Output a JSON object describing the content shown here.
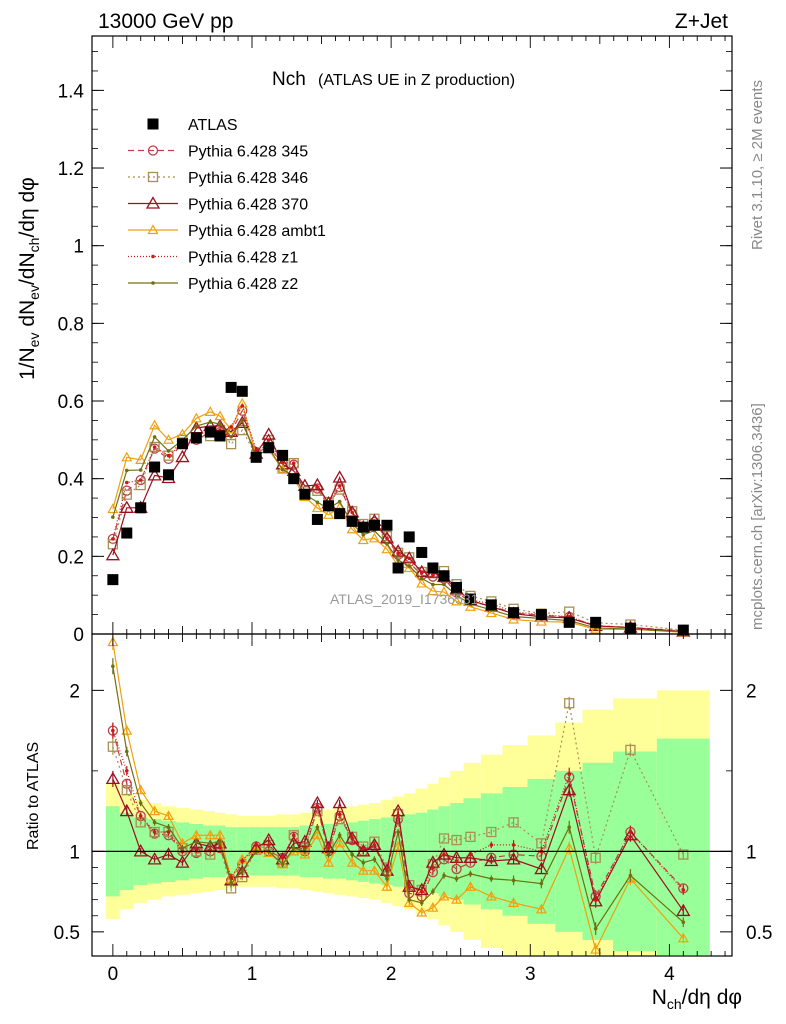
{
  "header": {
    "left": "13000 GeV pp",
    "right": "Z+Jet"
  },
  "side_labels": {
    "rivet": "Rivet 3.1.10, ≥ 2M events",
    "mcplots": "mcplots.cern.ch [arXiv:1306.3436]"
  },
  "plot": {
    "title_main": "Nch",
    "title_sub": "(ATLAS UE in Z production)",
    "watermark": "ATLAS_2019_I1736531",
    "ylabel_parts": [
      "1/N",
      "ev",
      " dN",
      "ev",
      "/dN",
      "ch",
      "/dη dφ"
    ],
    "ratio_ylabel": "Ratio to ATLAS",
    "xlabel_parts": [
      "N",
      "ch",
      "/dη dφ"
    ]
  },
  "colors": {
    "data": "#000000",
    "p345": "#c0404a",
    "p346": "#a89050",
    "p370": "#9b1020",
    "ambt1": "#f0a010",
    "z1": "#cc1a1a",
    "z2": "#707010",
    "band_outer": "#ffff99",
    "band_inner": "#99ff99"
  },
  "chart_data": {
    "type": "line",
    "x": [
      0.0,
      0.1,
      0.2,
      0.3,
      0.4,
      0.5,
      0.6,
      0.7,
      0.77,
      0.85,
      0.93,
      1.03,
      1.12,
      1.22,
      1.3,
      1.38,
      1.47,
      1.55,
      1.63,
      1.72,
      1.8,
      1.88,
      1.97,
      2.05,
      2.13,
      2.22,
      2.3,
      2.38,
      2.47,
      2.57,
      2.72,
      2.88,
      3.08,
      3.28,
      3.47,
      3.72,
      4.1
    ],
    "xlim": [
      -0.15,
      4.45
    ],
    "main_ylim": [
      0,
      1.54
    ],
    "main_yticks": [
      0,
      0.2,
      0.4,
      0.6,
      0.8,
      1,
      1.2,
      1.4
    ],
    "main_ytick_labels": [
      "0",
      "0.2",
      "0.4",
      "0.6",
      "0.8",
      "1",
      "1.2",
      "1.4"
    ],
    "ratio_ylim": [
      0.35,
      2.35
    ],
    "ratio_yticks": [
      0.5,
      1,
      2
    ],
    "ratio_ytick_labels": [
      "0.5",
      "1",
      "2"
    ],
    "xticks": [
      0,
      1,
      2,
      3,
      4
    ],
    "xtick_labels": [
      "0",
      "1",
      "2",
      "3",
      "4"
    ],
    "data_values": [
      0.14,
      0.26,
      0.325,
      0.43,
      0.41,
      0.49,
      0.505,
      0.52,
      0.51,
      0.635,
      0.625,
      0.455,
      0.48,
      0.46,
      0.4,
      0.36,
      0.295,
      0.33,
      0.31,
      0.29,
      0.275,
      0.28,
      0.28,
      0.17,
      0.25,
      0.21,
      0.17,
      0.15,
      0.12,
      0.09,
      0.075,
      0.055,
      0.05,
      0.03,
      0.03,
      0.015,
      0.01
    ],
    "band_inner": [
      0.28,
      0.24,
      0.21,
      0.2,
      0.19,
      0.18,
      0.17,
      0.16,
      0.16,
      0.15,
      0.15,
      0.15,
      0.15,
      0.15,
      0.15,
      0.16,
      0.16,
      0.17,
      0.17,
      0.18,
      0.19,
      0.2,
      0.21,
      0.22,
      0.23,
      0.24,
      0.26,
      0.28,
      0.3,
      0.33,
      0.36,
      0.4,
      0.45,
      0.5,
      0.55,
      0.62,
      0.7
    ],
    "band_outer": [
      0.42,
      0.36,
      0.32,
      0.3,
      0.28,
      0.27,
      0.26,
      0.25,
      0.24,
      0.23,
      0.22,
      0.22,
      0.22,
      0.23,
      0.23,
      0.24,
      0.25,
      0.26,
      0.27,
      0.28,
      0.29,
      0.3,
      0.32,
      0.34,
      0.36,
      0.39,
      0.42,
      0.46,
      0.5,
      0.55,
      0.6,
      0.66,
      0.72,
      0.8,
      0.88,
      0.95,
      1.0
    ],
    "legend_position": "top-left",
    "series": [
      {
        "name": "ATLAS",
        "key": "data",
        "style": "data",
        "marker": "square",
        "dash": ""
      },
      {
        "name": "Pythia 6.428 345",
        "key": "p345",
        "marker": "circle",
        "dash": "6,4",
        "ratio": [
          1.75,
          1.42,
          1.22,
          1.11,
          1.1,
          1.0,
          0.99,
          1.0,
          1.02,
          0.82,
          0.92,
          1.03,
          1.0,
          0.96,
          1.09,
          1.0,
          1.27,
          1.0,
          1.22,
          1.07,
          1.0,
          1.03,
          0.87,
          1.2,
          0.74,
          0.72,
          0.87,
          0.95,
          0.89,
          0.93,
          0.96,
          0.98,
          0.97,
          1.46,
          0.72,
          1.12,
          0.77
        ],
        "err": [
          0.05,
          0.03,
          0.02,
          0.02,
          0.02,
          0.02,
          0.02,
          0.02,
          0.02,
          0.02,
          0.02,
          0.02,
          0.02,
          0.02,
          0.02,
          0.02,
          0.02,
          0.02,
          0.02,
          0.02,
          0.02,
          0.02,
          0.02,
          0.02,
          0.02,
          0.02,
          0.02,
          0.02,
          0.02,
          0.02,
          0.02,
          0.03,
          0.03,
          0.04,
          0.04,
          0.04,
          0.03
        ]
      },
      {
        "name": "Pythia 6.428 346",
        "key": "p346",
        "marker": "square-open",
        "dash": "2,3",
        "ratio": [
          1.65,
          1.38,
          1.18,
          1.12,
          1.12,
          1.02,
          1.0,
          0.98,
          1.03,
          0.77,
          0.84,
          1.01,
          1.04,
          0.93,
          1.1,
          1.02,
          1.25,
          1.03,
          1.2,
          1.09,
          1.03,
          1.06,
          0.9,
          1.23,
          0.79,
          0.76,
          0.92,
          1.08,
          1.07,
          1.09,
          1.12,
          1.18,
          1.05,
          1.92,
          0.96,
          1.63,
          0.98
        ],
        "err": [
          0.05,
          0.03,
          0.02,
          0.02,
          0.02,
          0.02,
          0.02,
          0.02,
          0.02,
          0.02,
          0.02,
          0.02,
          0.02,
          0.02,
          0.02,
          0.02,
          0.02,
          0.02,
          0.02,
          0.02,
          0.02,
          0.02,
          0.02,
          0.02,
          0.02,
          0.02,
          0.02,
          0.02,
          0.02,
          0.02,
          0.02,
          0.03,
          0.03,
          0.04,
          0.04,
          0.04,
          0.03
        ]
      },
      {
        "name": "Pythia 6.428 370",
        "key": "p370",
        "marker": "triangle-open",
        "dash": "",
        "ratio": [
          1.45,
          1.25,
          1.0,
          0.95,
          0.98,
          0.93,
          1.05,
          1.03,
          1.05,
          0.82,
          0.87,
          1.02,
          1.07,
          0.95,
          1.05,
          1.06,
          1.3,
          1.02,
          1.3,
          1.08,
          1.0,
          1.04,
          0.88,
          1.25,
          0.78,
          0.76,
          0.93,
          0.98,
          0.96,
          0.96,
          0.94,
          0.95,
          0.89,
          1.38,
          0.69,
          1.1,
          0.63
        ],
        "err": [
          0.05,
          0.03,
          0.02,
          0.02,
          0.02,
          0.02,
          0.02,
          0.02,
          0.02,
          0.02,
          0.02,
          0.02,
          0.02,
          0.02,
          0.02,
          0.02,
          0.02,
          0.02,
          0.02,
          0.02,
          0.02,
          0.02,
          0.02,
          0.02,
          0.02,
          0.02,
          0.02,
          0.02,
          0.02,
          0.02,
          0.02,
          0.03,
          0.03,
          0.04,
          0.04,
          0.04,
          0.03
        ]
      },
      {
        "name": "Pythia 6.428 ambt1",
        "key": "ambt1",
        "marker": "triangle-small",
        "dash": "",
        "ratio": [
          2.3,
          1.75,
          1.38,
          1.25,
          1.22,
          1.05,
          1.1,
          1.1,
          1.1,
          0.83,
          0.95,
          1.01,
          0.99,
          0.92,
          1.0,
          0.98,
          1.1,
          0.93,
          1.05,
          0.93,
          0.88,
          0.88,
          0.78,
          1.03,
          0.68,
          0.62,
          0.65,
          0.72,
          0.7,
          0.78,
          0.72,
          0.68,
          0.64,
          1.02,
          0.39,
          0.83,
          0.46
        ],
        "err": [
          0.05,
          0.03,
          0.02,
          0.02,
          0.02,
          0.02,
          0.02,
          0.02,
          0.02,
          0.02,
          0.02,
          0.02,
          0.02,
          0.02,
          0.02,
          0.02,
          0.02,
          0.02,
          0.02,
          0.02,
          0.02,
          0.02,
          0.02,
          0.02,
          0.02,
          0.02,
          0.02,
          0.02,
          0.02,
          0.02,
          0.02,
          0.03,
          0.03,
          0.04,
          0.04,
          0.04,
          0.03
        ]
      },
      {
        "name": "Pythia 6.428 z1",
        "key": "z1",
        "marker": "dot",
        "dash": "1,2",
        "ratio": [
          1.75,
          1.5,
          1.22,
          1.12,
          1.12,
          1.0,
          1.01,
          1.01,
          1.03,
          0.84,
          0.94,
          1.04,
          1.04,
          0.96,
          1.1,
          1.02,
          1.28,
          1.02,
          1.23,
          1.08,
          1.01,
          1.04,
          0.88,
          1.22,
          0.78,
          0.75,
          0.9,
          0.98,
          0.94,
          0.98,
          1.04,
          1.04,
          1.0,
          1.48,
          0.7,
          1.12,
          0.76
        ],
        "err": [
          0.05,
          0.03,
          0.02,
          0.02,
          0.02,
          0.02,
          0.02,
          0.02,
          0.02,
          0.02,
          0.02,
          0.02,
          0.02,
          0.02,
          0.02,
          0.02,
          0.02,
          0.02,
          0.02,
          0.02,
          0.02,
          0.02,
          0.02,
          0.02,
          0.02,
          0.02,
          0.02,
          0.02,
          0.02,
          0.02,
          0.02,
          0.03,
          0.03,
          0.04,
          0.04,
          0.04,
          0.03
        ]
      },
      {
        "name": "Pythia 6.428 z2",
        "key": "z2",
        "marker": "dot",
        "dash": "",
        "ratio": [
          2.15,
          1.62,
          1.3,
          1.18,
          1.15,
          1.02,
          1.06,
          1.05,
          1.06,
          0.8,
          0.88,
          1.0,
          1.0,
          0.92,
          1.02,
          1.0,
          1.15,
          0.98,
          1.1,
          0.98,
          0.93,
          0.95,
          0.83,
          1.12,
          0.7,
          0.68,
          0.75,
          0.85,
          0.83,
          0.86,
          0.83,
          0.82,
          0.8,
          1.15,
          0.52,
          0.85,
          0.56
        ],
        "err": [
          0.05,
          0.03,
          0.02,
          0.02,
          0.02,
          0.02,
          0.02,
          0.02,
          0.02,
          0.02,
          0.02,
          0.02,
          0.02,
          0.02,
          0.02,
          0.02,
          0.02,
          0.02,
          0.02,
          0.02,
          0.02,
          0.02,
          0.02,
          0.02,
          0.02,
          0.02,
          0.02,
          0.02,
          0.02,
          0.02,
          0.02,
          0.03,
          0.03,
          0.04,
          0.04,
          0.04,
          0.03
        ]
      }
    ]
  }
}
